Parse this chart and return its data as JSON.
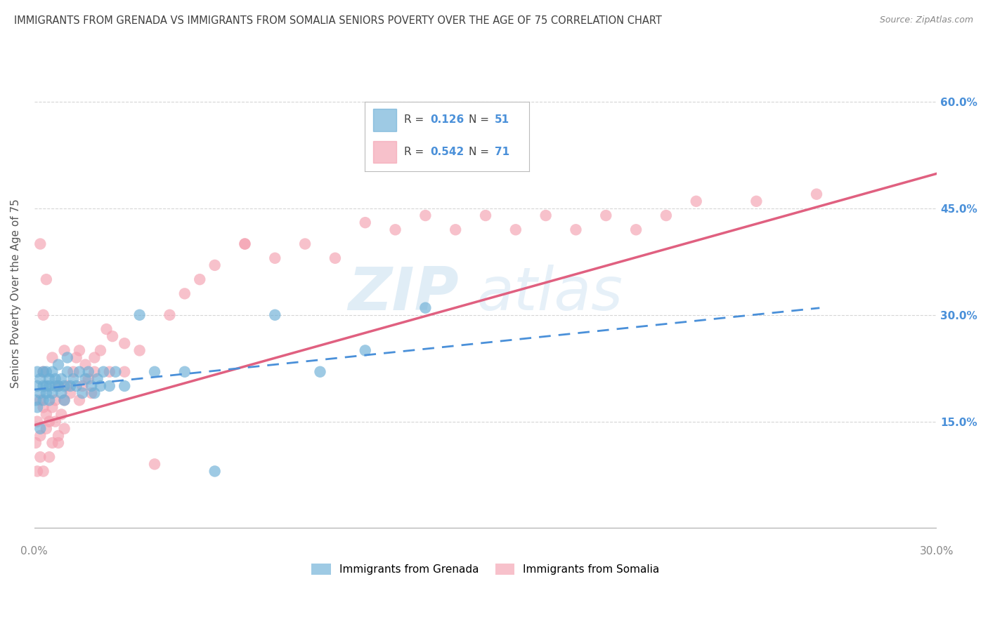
{
  "title": "IMMIGRANTS FROM GRENADA VS IMMIGRANTS FROM SOMALIA SENIORS POVERTY OVER THE AGE OF 75 CORRELATION CHART",
  "source": "Source: ZipAtlas.com",
  "ylabel": "Seniors Poverty Over the Age of 75",
  "xlabel_grenada": "Immigrants from Grenada",
  "xlabel_somalia": "Immigrants from Somalia",
  "watermark_zip": "ZIP",
  "watermark_atlas": "atlas",
  "xlim": [
    0.0,
    0.3
  ],
  "ylim": [
    -0.02,
    0.68
  ],
  "xticks": [
    0.0,
    0.05,
    0.1,
    0.15,
    0.2,
    0.25,
    0.3
  ],
  "ytick_positions": [
    0.0,
    0.15,
    0.3,
    0.45,
    0.6
  ],
  "ytick_labels": [
    "",
    "15.0%",
    "30.0%",
    "45.0%",
    "60.0%"
  ],
  "grenada_R": 0.126,
  "grenada_N": 51,
  "somalia_R": 0.542,
  "somalia_N": 71,
  "grenada_color": "#6baed6",
  "somalia_color": "#f4a0b0",
  "grenada_line_color": "#4a90d9",
  "somalia_line_color": "#e06080",
  "background_color": "#ffffff",
  "grid_color": "#cccccc",
  "title_color": "#404040",
  "legend_R_color": "#4a90d9",
  "legend_N_color": "#4a90d9",
  "somalia_line_intercept": 0.145,
  "somalia_line_slope": 1.18,
  "grenada_line_intercept": 0.195,
  "grenada_line_slope": 0.44,
  "grenada_scatter": {
    "x": [
      0.0005,
      0.001,
      0.001,
      0.001,
      0.002,
      0.002,
      0.002,
      0.003,
      0.003,
      0.003,
      0.004,
      0.004,
      0.004,
      0.005,
      0.005,
      0.005,
      0.006,
      0.006,
      0.007,
      0.007,
      0.008,
      0.008,
      0.009,
      0.009,
      0.01,
      0.01,
      0.011,
      0.011,
      0.012,
      0.013,
      0.014,
      0.015,
      0.016,
      0.017,
      0.018,
      0.019,
      0.02,
      0.021,
      0.022,
      0.023,
      0.025,
      0.027,
      0.03,
      0.035,
      0.04,
      0.05,
      0.06,
      0.08,
      0.095,
      0.11,
      0.13
    ],
    "y": [
      0.18,
      0.2,
      0.22,
      0.17,
      0.19,
      0.21,
      0.14,
      0.2,
      0.18,
      0.22,
      0.22,
      0.2,
      0.19,
      0.21,
      0.2,
      0.18,
      0.22,
      0.19,
      0.2,
      0.21,
      0.23,
      0.2,
      0.19,
      0.21,
      0.2,
      0.18,
      0.22,
      0.24,
      0.2,
      0.21,
      0.2,
      0.22,
      0.19,
      0.21,
      0.22,
      0.2,
      0.19,
      0.21,
      0.2,
      0.22,
      0.2,
      0.22,
      0.2,
      0.3,
      0.22,
      0.22,
      0.08,
      0.3,
      0.22,
      0.25,
      0.31
    ]
  },
  "somalia_scatter": {
    "x": [
      0.0005,
      0.001,
      0.001,
      0.002,
      0.002,
      0.002,
      0.003,
      0.003,
      0.003,
      0.004,
      0.004,
      0.005,
      0.005,
      0.006,
      0.006,
      0.007,
      0.007,
      0.008,
      0.008,
      0.009,
      0.01,
      0.01,
      0.011,
      0.012,
      0.013,
      0.014,
      0.015,
      0.016,
      0.017,
      0.018,
      0.019,
      0.02,
      0.022,
      0.024,
      0.026,
      0.03,
      0.035,
      0.04,
      0.045,
      0.05,
      0.055,
      0.06,
      0.07,
      0.08,
      0.09,
      0.1,
      0.11,
      0.12,
      0.13,
      0.14,
      0.15,
      0.16,
      0.17,
      0.18,
      0.19,
      0.2,
      0.21,
      0.22,
      0.24,
      0.26,
      0.07,
      0.025,
      0.015,
      0.008,
      0.004,
      0.002,
      0.003,
      0.006,
      0.01,
      0.02,
      0.03
    ],
    "y": [
      0.12,
      0.15,
      0.08,
      0.13,
      0.18,
      0.1,
      0.17,
      0.22,
      0.08,
      0.14,
      0.16,
      0.15,
      0.1,
      0.17,
      0.12,
      0.15,
      0.18,
      0.13,
      0.2,
      0.16,
      0.14,
      0.18,
      0.2,
      0.19,
      0.22,
      0.24,
      0.25,
      0.2,
      0.23,
      0.21,
      0.19,
      0.22,
      0.25,
      0.28,
      0.27,
      0.26,
      0.25,
      0.09,
      0.3,
      0.33,
      0.35,
      0.37,
      0.4,
      0.38,
      0.4,
      0.38,
      0.43,
      0.42,
      0.44,
      0.42,
      0.44,
      0.42,
      0.44,
      0.42,
      0.44,
      0.42,
      0.44,
      0.46,
      0.46,
      0.47,
      0.4,
      0.22,
      0.18,
      0.12,
      0.35,
      0.4,
      0.3,
      0.24,
      0.25,
      0.24,
      0.22
    ]
  }
}
